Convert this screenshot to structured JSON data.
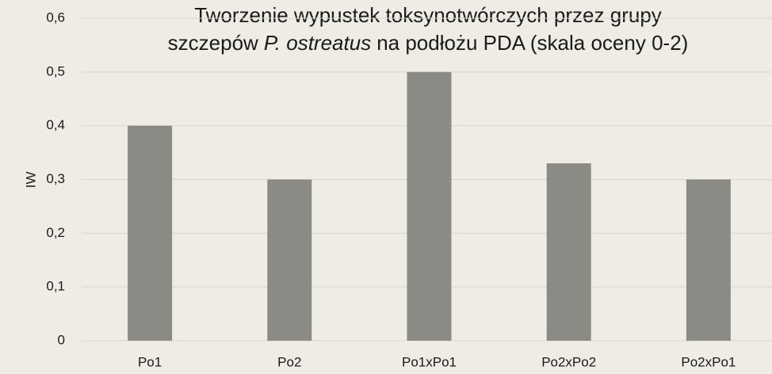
{
  "chart_data": {
    "type": "bar",
    "title": [
      [
        "Tworzenie wypustek toksynotwórczych przez grupy"
      ],
      [
        "szczepów",
        "P. ostreatus",
        "na podłożu PDA (skala oceny 0-2)"
      ]
    ],
    "y_label": "IW",
    "categories": [
      "Po1",
      "Po2",
      "Po1xPo1",
      "Po2xPo2",
      "Po2xPo1"
    ],
    "values": [
      0.4,
      0.3,
      0.5,
      0.33,
      0.3
    ],
    "color": "#8a8b84",
    "ylim": [
      0,
      0.6
    ],
    "yticks": [
      0,
      {
        "value": 0.1,
        "label": "0,1"
      },
      {
        "value": 0.2,
        "label": "0,2"
      },
      {
        "value": 0.3,
        "label": "0,3"
      },
      {
        "value": 0.4,
        "label": "0,4"
      },
      {
        "value": 0.5,
        "label": "0,5"
      },
      {
        "value": 0.6,
        "label": "0,6"
      }
    ],
    "grid": true
  }
}
